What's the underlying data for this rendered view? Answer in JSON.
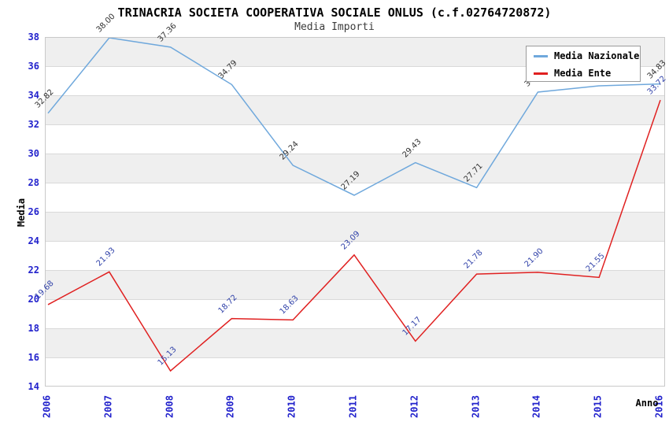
{
  "title": "TRINACRIA SOCIETA COOPERATIVA SOCIALE ONLUS (c.f.02764720872)",
  "subtitle": "Media Importi",
  "axes": {
    "y_label": "Media",
    "x_label": "Anno",
    "tick_color": "#2222cc"
  },
  "legend": [
    {
      "label": "Media Nazionale",
      "color": "#6fa8dc"
    },
    {
      "label": "Media Ente",
      "color": "#e02020"
    }
  ],
  "chart_data": {
    "type": "line",
    "title": "TRINACRIA SOCIETA COOPERATIVA SOCIALE ONLUS (c.f.02764720872)",
    "subtitle": "Media Importi",
    "xlabel": "Anno",
    "ylabel": "Media",
    "x": [
      2006,
      2007,
      2008,
      2009,
      2010,
      2011,
      2012,
      2013,
      2014,
      2015,
      2016
    ],
    "series": [
      {
        "name": "Media Nazionale",
        "color": "#6fa8dc",
        "label_color": "#333333",
        "values": [
          32.82,
          38.0,
          37.36,
          34.79,
          29.24,
          27.19,
          29.43,
          27.71,
          34.27,
          34.7,
          34.83
        ]
      },
      {
        "name": "Media Ente",
        "color": "#e02020",
        "label_color": "#3344aa",
        "values": [
          19.68,
          21.93,
          15.13,
          18.72,
          18.63,
          23.09,
          17.17,
          21.78,
          21.9,
          21.55,
          33.72
        ]
      }
    ],
    "ylim": [
      14,
      38
    ],
    "ytick_step": 2,
    "grid": "horizontal-bands",
    "legend_position": "top-right",
    "notes": "2014 and 2015 Media Nazionale point labels are hidden behind the legend box"
  }
}
